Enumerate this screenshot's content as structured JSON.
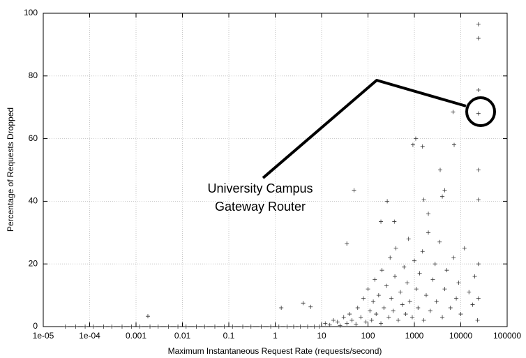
{
  "chart_data": {
    "type": "scatter",
    "xlabel": "Maximum Instantaneous Request Rate (requests/second)",
    "ylabel": "Percentage of Requests Dropped",
    "annotation": [
      "University Campus",
      "Gateway Router"
    ],
    "xscale": "log",
    "grid": true,
    "color": "#333333",
    "xlim": [
      1e-05,
      100000
    ],
    "xticks": [
      {
        "value": 1e-05,
        "label": "1e-05"
      },
      {
        "value": 0.0001,
        "label": "1e-04"
      },
      0.001,
      0.01,
      0.1,
      1,
      10,
      100,
      1000,
      10000,
      100000
    ],
    "ylim": [
      0,
      100
    ],
    "yticks": [
      0,
      20,
      40,
      60,
      80,
      100
    ],
    "x": [
      3e-05,
      5e-05,
      8e-05,
      0.00012,
      0.0002,
      0.0003,
      0.0005,
      0.0008,
      0.0012,
      0.002,
      0.003,
      0.005,
      0.008,
      0.012,
      0.02,
      0.03,
      0.05,
      0.08,
      0.12,
      0.2,
      0.3,
      0.5,
      0.8,
      1.2,
      1.8,
      2.5,
      3.5,
      5,
      7,
      9,
      12,
      15,
      18,
      22,
      25,
      30,
      35,
      40,
      45,
      55,
      60,
      70,
      80,
      90,
      100,
      110,
      120,
      130,
      140,
      150,
      170,
      190,
      200,
      220,
      250,
      280,
      300,
      320,
      350,
      380,
      400,
      450,
      500,
      550,
      600,
      650,
      700,
      750,
      800,
      900,
      1000,
      1100,
      1200,
      1300,
      1500,
      1600,
      1800,
      2000,
      2200,
      2500,
      2800,
      3000,
      3500,
      4000,
      4500,
      5000,
      6000,
      7000,
      8000,
      9000,
      10000,
      12000,
      15000,
      18000,
      20000,
      23000,
      24000,
      24000,
      35,
      190,
      370,
      2000,
      24000,
      24000,
      24000,
      24000,
      24000,
      24000,
      50,
      1070,
      930,
      1500,
      7200,
      6800,
      3600,
      4500,
      4000,
      1600,
      260,
      1.35,
      0.0018,
      4,
      5.8
    ],
    "values": [
      0,
      0,
      0,
      0,
      0,
      0,
      0,
      0,
      0,
      0,
      0,
      0,
      0,
      0,
      0,
      0,
      0,
      0,
      0,
      0,
      0,
      0,
      0,
      0,
      0,
      0,
      0,
      0,
      0,
      0,
      1,
      0.5,
      2,
      1.5,
      0.3,
      3,
      1,
      4,
      2,
      0.8,
      6,
      3,
      9,
      1.5,
      12,
      5,
      2,
      8,
      15,
      4,
      10,
      1,
      18,
      6,
      13,
      3,
      22,
      9,
      5,
      16,
      25,
      2,
      11,
      7,
      19,
      4,
      14,
      28,
      8,
      3,
      21,
      12,
      6,
      17,
      24,
      2,
      10,
      30,
      5,
      15,
      20,
      8,
      27,
      3,
      12,
      18,
      6,
      22,
      9,
      14,
      4,
      25,
      11,
      7,
      16,
      2,
      20,
      9,
      26.5,
      33.5,
      33.5,
      36,
      96.5,
      92,
      75.5,
      68,
      50,
      40.5,
      43.5,
      60,
      58,
      57.5,
      58,
      68.5,
      50,
      43.5,
      41.5,
      40.5,
      40,
      6,
      3.3,
      7.5,
      6.3
    ]
  }
}
